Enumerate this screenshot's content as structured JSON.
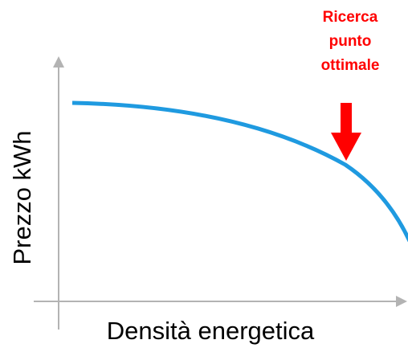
{
  "x_axis_label": "Densità energetica",
  "y_axis_label": "Prezzo kWh",
  "annotation": {
    "lines": [
      "Ricerca",
      "punto",
      "ottimale"
    ]
  }
}
